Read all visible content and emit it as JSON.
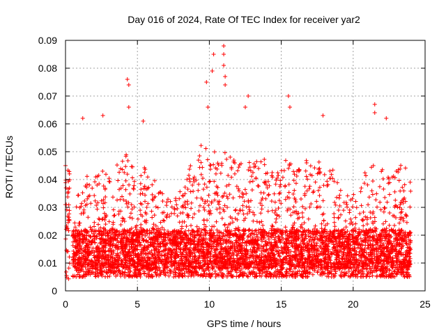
{
  "chart_data": {
    "type": "scatter",
    "title": "Day 016 of 2024, Rate Of TEC Index for receiver yar2",
    "xlabel": "GPS time / hours",
    "ylabel": "ROTI / TECUs",
    "xlim": [
      0,
      25
    ],
    "ylim": [
      0,
      0.09
    ],
    "x_ticks": [
      0,
      5,
      10,
      15,
      20,
      25
    ],
    "y_ticks": [
      0,
      0.01,
      0.02,
      0.03,
      0.04,
      0.05,
      0.06,
      0.07,
      0.08,
      0.09
    ],
    "x_tick_labels": [
      "0",
      "5",
      "10",
      "15",
      "20",
      "25"
    ],
    "y_tick_labels": [
      "0",
      "0.01",
      "0.02",
      "0.03",
      "0.04",
      "0.05",
      "0.06",
      "0.07",
      "0.08",
      "0.09"
    ],
    "grid": true,
    "marker": "+",
    "series": [
      {
        "name": "ROTI",
        "color": "#ff0000",
        "notable_points": [
          {
            "x": 0.0,
            "y": 0.045
          },
          {
            "x": 0.0,
            "y": 0.031
          },
          {
            "x": 1.2,
            "y": 0.062
          },
          {
            "x": 2.6,
            "y": 0.063
          },
          {
            "x": 4.3,
            "y": 0.076
          },
          {
            "x": 4.4,
            "y": 0.074
          },
          {
            "x": 4.4,
            "y": 0.066
          },
          {
            "x": 5.4,
            "y": 0.061
          },
          {
            "x": 9.8,
            "y": 0.075
          },
          {
            "x": 9.9,
            "y": 0.066
          },
          {
            "x": 10.3,
            "y": 0.085
          },
          {
            "x": 10.2,
            "y": 0.079
          },
          {
            "x": 11.0,
            "y": 0.088
          },
          {
            "x": 11.0,
            "y": 0.085
          },
          {
            "x": 11.0,
            "y": 0.081
          },
          {
            "x": 11.1,
            "y": 0.077
          },
          {
            "x": 11.1,
            "y": 0.074
          },
          {
            "x": 12.5,
            "y": 0.066
          },
          {
            "x": 12.7,
            "y": 0.07
          },
          {
            "x": 15.5,
            "y": 0.07
          },
          {
            "x": 15.6,
            "y": 0.066
          },
          {
            "x": 17.9,
            "y": 0.063
          },
          {
            "x": 21.5,
            "y": 0.067
          },
          {
            "x": 21.5,
            "y": 0.064
          },
          {
            "x": 22.3,
            "y": 0.062
          }
        ],
        "activity_envelope": {
          "hours": [
            0,
            0.5,
            1,
            1.5,
            2,
            2.5,
            3,
            3.5,
            4,
            4.5,
            5,
            5.5,
            6,
            6.5,
            7,
            7.5,
            8,
            8.5,
            9,
            9.5,
            10,
            10.5,
            11,
            11.5,
            12,
            12.5,
            13,
            13.5,
            14,
            14.5,
            15,
            15.5,
            16,
            16.5,
            17,
            17.5,
            18,
            18.5,
            19,
            19.5,
            20,
            20.5,
            21,
            21.5,
            22,
            22.5,
            23,
            23.5,
            24
          ],
          "typical_upper": [
            0.03,
            0.025,
            0.038,
            0.042,
            0.04,
            0.045,
            0.046,
            0.048,
            0.05,
            0.05,
            0.038,
            0.045,
            0.042,
            0.036,
            0.035,
            0.032,
            0.038,
            0.042,
            0.05,
            0.054,
            0.052,
            0.05,
            0.052,
            0.048,
            0.046,
            0.048,
            0.046,
            0.05,
            0.046,
            0.044,
            0.046,
            0.048,
            0.044,
            0.046,
            0.048,
            0.046,
            0.05,
            0.046,
            0.038,
            0.034,
            0.036,
            0.04,
            0.044,
            0.046,
            0.046,
            0.042,
            0.044,
            0.046,
            0.04
          ],
          "floor": 0.005,
          "dense_band": [
            0.008,
            0.022
          ]
        }
      }
    ]
  }
}
